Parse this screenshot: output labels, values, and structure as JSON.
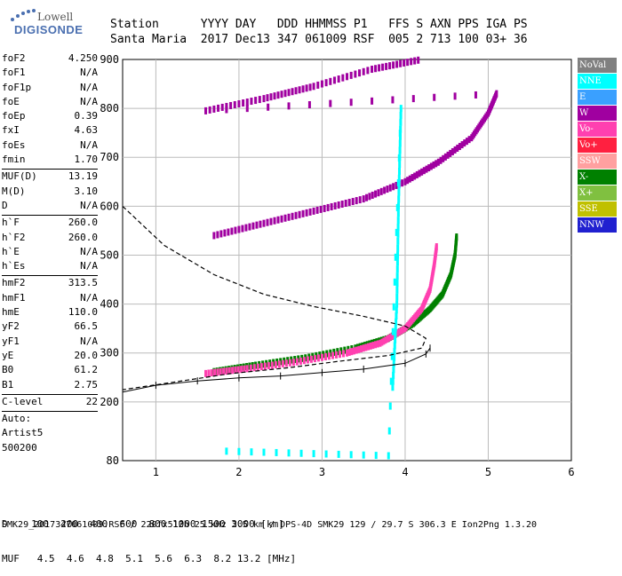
{
  "logo": {
    "word1": "Lowell",
    "word2": "DIGISONDE"
  },
  "header": {
    "row1": "Station      YYYY DAY   DDD HHMMSS P1   FFS S AXN PPS IGA PS",
    "row2": "Santa Maria  2017 Dec13 347 061009 RSF  005 2 713 100 03+ 36"
  },
  "params": {
    "g1": [
      [
        "foF2",
        "4.250"
      ],
      [
        "foF1",
        "N/A"
      ],
      [
        "foF1p",
        "N/A"
      ],
      [
        "foE",
        "N/A"
      ],
      [
        "foEp",
        "0.39"
      ],
      [
        "fxI",
        "4.63"
      ],
      [
        "foEs",
        "N/A"
      ],
      [
        "fmin",
        "1.70"
      ]
    ],
    "g2": [
      [
        "MUF(D)",
        "13.19"
      ],
      [
        "M(D)",
        "3.10"
      ],
      [
        "D",
        "N/A"
      ]
    ],
    "g3": [
      [
        "h`F",
        "260.0"
      ],
      [
        "h`F2",
        "260.0"
      ],
      [
        "h`E",
        "N/A"
      ],
      [
        "h`Es",
        "N/A"
      ]
    ],
    "g4": [
      [
        "hmF2",
        "313.5"
      ],
      [
        "hmF1",
        "N/A"
      ],
      [
        "hmE",
        "110.0"
      ],
      [
        "yF2",
        "66.5"
      ],
      [
        "yF1",
        "N/A"
      ],
      [
        "yE",
        "20.0"
      ],
      [
        "B0",
        "61.2"
      ],
      [
        "B1",
        "2.75"
      ]
    ],
    "g5": [
      [
        "C-level",
        "22"
      ]
    ],
    "autoscale": [
      "Auto:",
      "Artist5",
      "500200"
    ]
  },
  "bottom": {
    "row1": "D    100  200  400  600  800 1000 1500 3000 [km]",
    "row2": "MUF   4.5  4.6  4.8  5.1  5.6  6.3  8.2 13.2 [MHz]"
  },
  "footer": "SMK29_2017347061009.RSF / 220fx512h 25 kHz 2.5 km / DPS-4D SMK29 129 / 29.7 S 306.3 E Ion2Png 1.3.20",
  "legend": [
    {
      "label": "NoVal",
      "color": "#808080"
    },
    {
      "label": "NNE",
      "color": "#00ffff"
    },
    {
      "label": "E",
      "color": "#3aa0ff"
    },
    {
      "label": "W",
      "color": "#a000a0"
    },
    {
      "label": "Vo-",
      "color": "#ff40b0"
    },
    {
      "label": "Vo+",
      "color": "#ff2040"
    },
    {
      "label": "SSW",
      "color": "#ffa0a0"
    },
    {
      "label": "X-",
      "color": "#008000"
    },
    {
      "label": "X+",
      "color": "#80c040"
    },
    {
      "label": "SSE",
      "color": "#c0c000"
    },
    {
      "label": "NNW",
      "color": "#2020d0"
    }
  ],
  "chart_data": {
    "type": "scatter",
    "title": "",
    "xlabel": "",
    "ylabel": "",
    "xlim": [
      0.6,
      6.0
    ],
    "ylim": [
      80,
      900
    ],
    "x_ticks": [
      1,
      2,
      3,
      4,
      5,
      6
    ],
    "y_ticks": [
      80,
      200,
      300,
      400,
      500,
      600,
      700,
      800,
      900
    ],
    "grid": true,
    "series": [
      {
        "name": "X-",
        "color": "#008000",
        "points": [
          [
            1.7,
            262
          ],
          [
            2.2,
            275
          ],
          [
            2.8,
            290
          ],
          [
            3.4,
            310
          ],
          [
            3.8,
            330
          ],
          [
            4.1,
            360
          ],
          [
            4.3,
            390
          ],
          [
            4.45,
            420
          ],
          [
            4.55,
            460
          ],
          [
            4.6,
            500
          ],
          [
            4.62,
            540
          ]
        ]
      },
      {
        "name": "Vo-",
        "color": "#ff40b0",
        "points": [
          [
            1.6,
            258
          ],
          [
            2.1,
            268
          ],
          [
            2.7,
            282
          ],
          [
            3.3,
            300
          ],
          [
            3.7,
            320
          ],
          [
            4.0,
            350
          ],
          [
            4.2,
            390
          ],
          [
            4.3,
            430
          ],
          [
            4.35,
            480
          ],
          [
            4.38,
            520
          ]
        ]
      },
      {
        "name": "W",
        "color": "#a000a0",
        "points": [
          [
            1.7,
            540
          ],
          [
            2.3,
            565
          ],
          [
            2.9,
            590
          ],
          [
            3.5,
            615
          ],
          [
            4.0,
            650
          ],
          [
            4.4,
            690
          ],
          [
            4.8,
            740
          ],
          [
            5.0,
            790
          ],
          [
            5.1,
            830
          ],
          [
            1.6,
            795
          ],
          [
            2.3,
            820
          ],
          [
            2.9,
            845
          ],
          [
            3.6,
            880
          ],
          [
            4.2,
            900
          ]
        ]
      },
      {
        "name": "NNE",
        "color": "#00ffff",
        "points": [
          [
            3.85,
            230
          ],
          [
            3.9,
            400
          ],
          [
            3.92,
            600
          ],
          [
            3.95,
            800
          ],
          [
            3.8,
            90
          ],
          [
            1.7,
            100
          ]
        ]
      }
    ],
    "dashed_profile": [
      [
        0.6,
        600
      ],
      [
        1.1,
        520
      ],
      [
        1.7,
        460
      ],
      [
        2.3,
        420
      ],
      [
        2.9,
        395
      ],
      [
        3.5,
        375
      ],
      [
        4.0,
        355
      ],
      [
        4.25,
        330
      ],
      [
        4.2,
        310
      ],
      [
        3.8,
        295
      ],
      [
        3.2,
        283
      ],
      [
        2.6,
        270
      ],
      [
        1.9,
        258
      ],
      [
        1.2,
        240
      ],
      [
        0.6,
        225
      ]
    ],
    "tick_profile": [
      [
        0.6,
        220
      ],
      [
        1.0,
        234
      ],
      [
        1.5,
        243
      ],
      [
        2.0,
        249
      ],
      [
        2.5,
        253
      ],
      [
        3.0,
        260
      ],
      [
        3.5,
        267
      ],
      [
        4.0,
        279
      ],
      [
        4.25,
        298
      ],
      [
        4.3,
        310
      ]
    ]
  }
}
